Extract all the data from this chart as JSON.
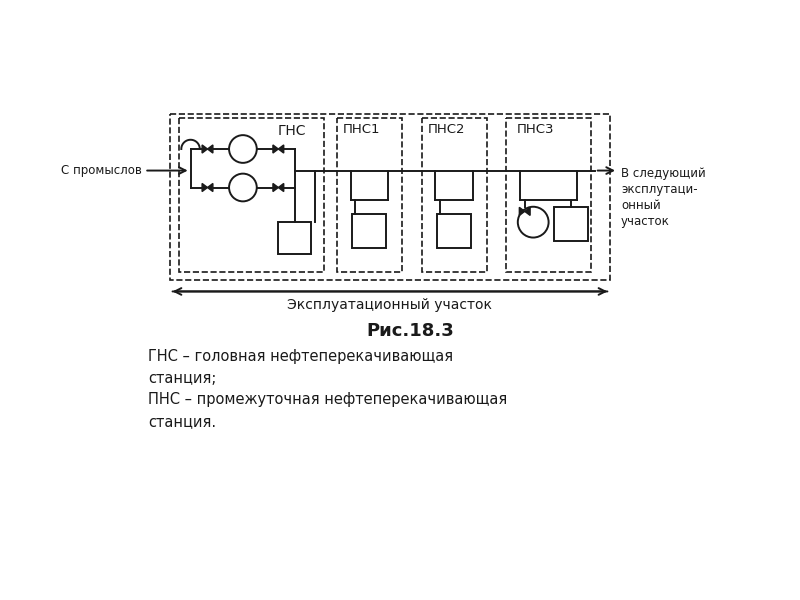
{
  "bg_color": "#ffffff",
  "line_color": "#1a1a1a",
  "title": "Рис.18.3",
  "caption_line1": "ГНС – головная нефтеперекачивающая",
  "caption_line2": "станция;",
  "caption_line3": "ПНС – промежуточная нефтеперекачивающая",
  "caption_line4": "станция.",
  "label_gns": "ГНС",
  "label_pns1": "ПНС1",
  "label_pns2": "ПНС2",
  "label_pns3": "ПНС3",
  "label_from": "С промыслов",
  "label_to": "В следующий\nэксплутаци-\nонный\nучасток",
  "label_exploit": "Эксплуатационный участок"
}
